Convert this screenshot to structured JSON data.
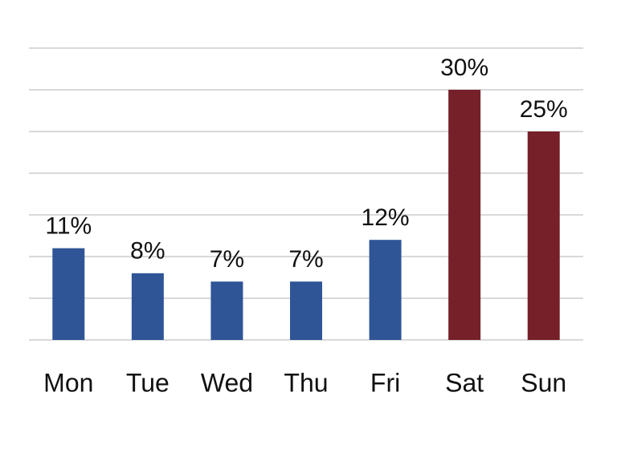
{
  "chart_data": {
    "type": "bar",
    "categories": [
      "Mon",
      "Tue",
      "Wed",
      "Thu",
      "Fri",
      "Sat",
      "Sun"
    ],
    "values": [
      11,
      8,
      7,
      7,
      12,
      30,
      25
    ],
    "value_labels": [
      "11%",
      "8%",
      "7%",
      "7%",
      "12%",
      "30%",
      "25%"
    ],
    "colors": [
      "#2f5597",
      "#2f5597",
      "#2f5597",
      "#2f5597",
      "#2f5597",
      "#76202a",
      "#76202a"
    ],
    "ylim": [
      0,
      35
    ],
    "yticks": [
      0,
      5,
      10,
      15,
      20,
      25,
      30,
      35
    ],
    "grid": true
  }
}
